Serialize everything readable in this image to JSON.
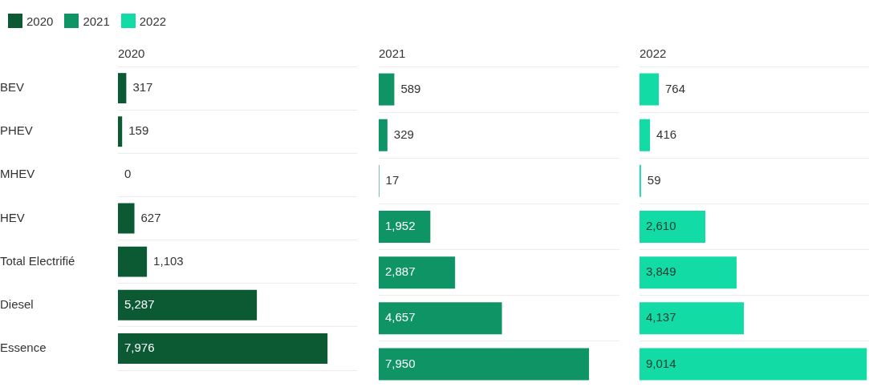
{
  "chart_data": [
    {
      "type": "bar",
      "orientation": "horizontal",
      "title": "2020",
      "categories": [
        "BEV",
        "PHEV",
        "MHEV",
        "HEV",
        "Total Electrifié",
        "Diesel",
        "Essence"
      ],
      "xlim": [
        0,
        9100
      ],
      "tick_labels": "y",
      "grid": "y",
      "legend": "top left",
      "series": [
        {
          "name": "2020",
          "color": "#0b5a34",
          "values": [
            317,
            159,
            0,
            627,
            1103,
            5287,
            7976
          ],
          "value_labels": [
            "317",
            "159",
            "0",
            "627",
            "1,103",
            "5,287",
            "7,976"
          ]
        }
      ]
    },
    {
      "type": "bar",
      "orientation": "horizontal",
      "title": "2021",
      "xlim": [
        0,
        9100
      ],
      "tick_labels": false,
      "grid": "y",
      "legend": "top left",
      "series": [
        {
          "name": "2021",
          "color": "#0f9466",
          "values": [
            589,
            329,
            17,
            1952,
            2887,
            4657,
            7950
          ],
          "value_labels": [
            "589",
            "329",
            "17",
            "1,952",
            "2,887",
            "4,657",
            "7,950"
          ]
        }
      ]
    },
    {
      "type": "bar",
      "orientation": "horizontal",
      "title": "2022",
      "xlim": [
        0,
        9100
      ],
      "tick_labels": false,
      "grid": "y",
      "legend": "top left",
      "series": [
        {
          "name": "2022",
          "color": "#12dba6",
          "values": [
            764,
            416,
            59,
            2610,
            3849,
            4137,
            9014
          ],
          "value_labels": [
            "764",
            "416",
            "59",
            "2,610",
            "3,849",
            "4,137",
            "9,014"
          ]
        }
      ]
    }
  ]
}
